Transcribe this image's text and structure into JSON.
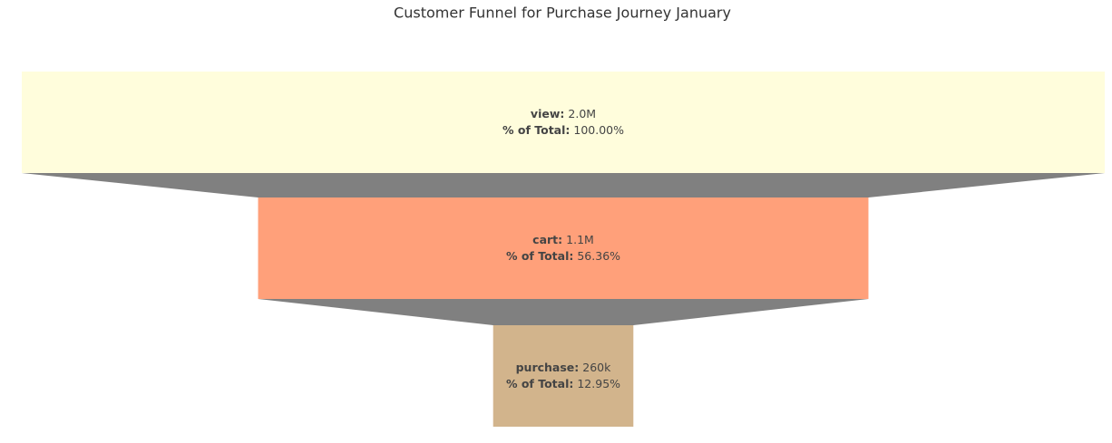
{
  "chart_data": {
    "type": "funnel",
    "title": "Customer Funnel for Purchase Journey January",
    "categories": [
      "view",
      "cart",
      "purchase"
    ],
    "separator": ":",
    "values": [
      2008000,
      1131700,
      260000
    ],
    "value_labels": [
      "2.0M",
      "1.1M",
      "260k"
    ],
    "percent_title": "% of Total:",
    "percent_values": [
      100,
      56.36,
      12.95
    ],
    "percent_labels": [
      "100.00%",
      "56.36%",
      "12.95%"
    ],
    "colors": [
      "#fffddc",
      "#ffa07a",
      "#d2b48c"
    ],
    "connector_color": "#808080"
  }
}
